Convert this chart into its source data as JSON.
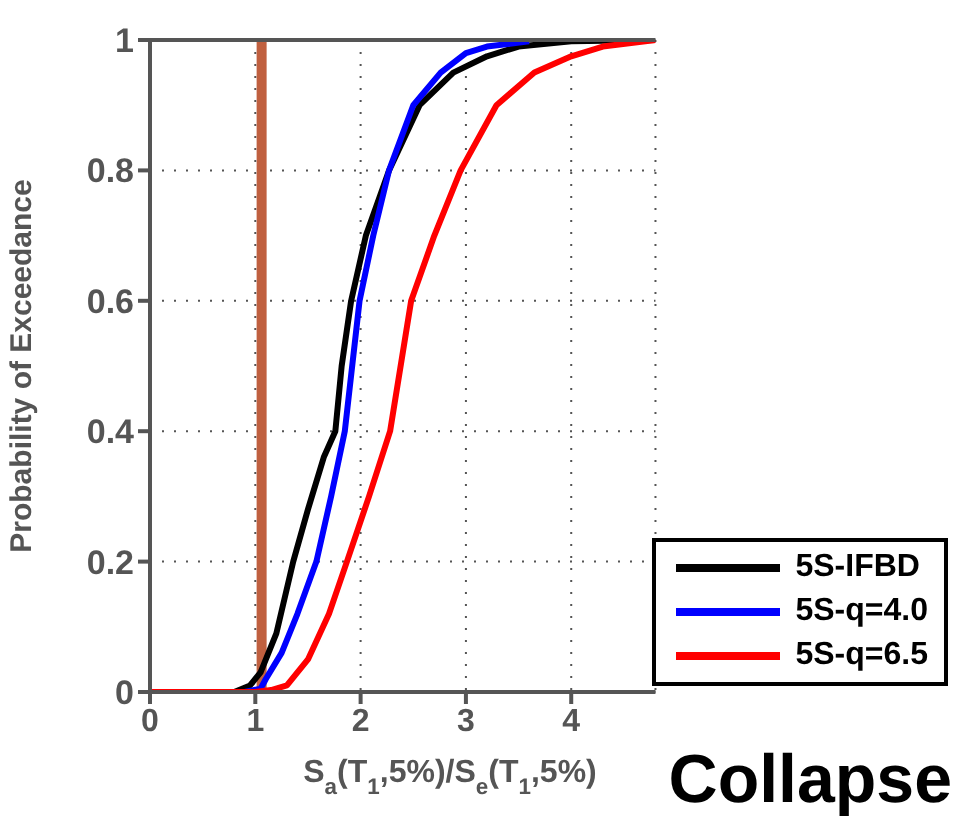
{
  "chart_data": {
    "type": "line",
    "xlabel": "S$_{a}$(T$_{1}$,5%)/S$_{e}$(T$_{1}$,5%)",
    "ylabel": "Probability of Exceedance",
    "xlim": [
      0,
      4.8
    ],
    "xticks": [
      0,
      1,
      2,
      3,
      4
    ],
    "ylim": [
      0,
      1
    ],
    "yticks": [
      0,
      0.2,
      0.4,
      0.6,
      0.8,
      1
    ],
    "grid": true,
    "legend": "bottom right",
    "marker": "none",
    "line_style": "solid",
    "annotations": [
      "Collapse"
    ],
    "ref_lines": [
      {
        "axis": "x",
        "value": 1.06,
        "color": "#c0603f"
      }
    ],
    "series": [
      {
        "name": "5S-IFBD",
        "color": "#000000",
        "x": [
          0,
          0.8,
          0.95,
          1.05,
          1.2,
          1.36,
          1.5,
          1.65,
          1.76,
          1.82,
          1.91,
          2.05,
          2.27,
          2.56,
          2.88,
          3.2,
          3.5,
          4.0,
          4.8
        ],
        "values": [
          0,
          0,
          0.01,
          0.03,
          0.09,
          0.2,
          0.28,
          0.36,
          0.4,
          0.5,
          0.6,
          0.7,
          0.8,
          0.9,
          0.95,
          0.975,
          0.99,
          0.998,
          1
        ]
      },
      {
        "name": "5S-q=4.0",
        "color": "#0000ff",
        "x": [
          0,
          0.9,
          1.05,
          1.1,
          1.25,
          1.4,
          1.58,
          1.72,
          1.85,
          1.99,
          2.12,
          2.27,
          2.5,
          2.76,
          3.0,
          3.2,
          3.6
        ],
        "values": [
          0,
          0,
          0.005,
          0.02,
          0.06,
          0.12,
          0.2,
          0.3,
          0.4,
          0.6,
          0.7,
          0.8,
          0.9,
          0.95,
          0.98,
          0.99,
          0.998
        ]
      },
      {
        "name": "5S-q=6.5",
        "color": "#ff0000",
        "x": [
          0,
          1.0,
          1.15,
          1.3,
          1.5,
          1.7,
          1.87,
          2.08,
          2.28,
          2.48,
          2.7,
          2.95,
          3.29,
          3.65,
          4.0,
          4.3,
          4.8
        ],
        "values": [
          0,
          0,
          0.003,
          0.01,
          0.05,
          0.12,
          0.2,
          0.3,
          0.4,
          0.6,
          0.7,
          0.8,
          0.9,
          0.95,
          0.975,
          0.99,
          1
        ]
      }
    ]
  }
}
